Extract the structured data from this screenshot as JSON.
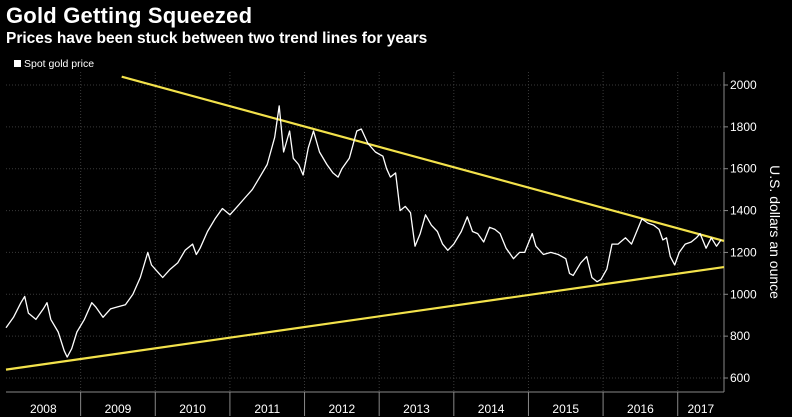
{
  "title": "Gold Getting Squeezed",
  "subtitle": "Prices have been stuck between two trend lines for years",
  "colors": {
    "background": "#000000",
    "price_line": "#ffffff",
    "trend_line": "#f3e24b",
    "grid": "#3a3a3a"
  },
  "chart_data": {
    "type": "line",
    "ylabel": "U.S. dollars an ounce",
    "ylim": [
      600,
      2000
    ],
    "yticks": [
      600,
      800,
      1000,
      1200,
      1400,
      1600,
      1800,
      2000
    ],
    "xticks": [
      "2008",
      "2009",
      "2010",
      "2011",
      "2012",
      "2013",
      "2014",
      "2015",
      "2016",
      "2017"
    ],
    "xlim": [
      2008.0,
      2017.62
    ],
    "legend": {
      "placement": "top-left",
      "entries": [
        "Spot gold price"
      ]
    },
    "grid": true,
    "series": [
      {
        "name": "Spot gold price",
        "points": [
          [
            2008.0,
            840
          ],
          [
            2008.1,
            890
          ],
          [
            2008.2,
            960
          ],
          [
            2008.25,
            990
          ],
          [
            2008.3,
            910
          ],
          [
            2008.4,
            880
          ],
          [
            2008.5,
            930
          ],
          [
            2008.55,
            960
          ],
          [
            2008.6,
            880
          ],
          [
            2008.7,
            820
          ],
          [
            2008.78,
            730
          ],
          [
            2008.82,
            700
          ],
          [
            2008.88,
            740
          ],
          [
            2008.95,
            820
          ],
          [
            2009.05,
            880
          ],
          [
            2009.15,
            960
          ],
          [
            2009.2,
            940
          ],
          [
            2009.3,
            890
          ],
          [
            2009.4,
            930
          ],
          [
            2009.5,
            940
          ],
          [
            2009.6,
            950
          ],
          [
            2009.7,
            1000
          ],
          [
            2009.8,
            1080
          ],
          [
            2009.9,
            1200
          ],
          [
            2009.95,
            1140
          ],
          [
            2010.05,
            1100
          ],
          [
            2010.1,
            1080
          ],
          [
            2010.2,
            1120
          ],
          [
            2010.3,
            1150
          ],
          [
            2010.4,
            1210
          ],
          [
            2010.5,
            1240
          ],
          [
            2010.55,
            1190
          ],
          [
            2010.6,
            1220
          ],
          [
            2010.7,
            1300
          ],
          [
            2010.8,
            1360
          ],
          [
            2010.9,
            1410
          ],
          [
            2011.0,
            1380
          ],
          [
            2011.1,
            1420
          ],
          [
            2011.2,
            1460
          ],
          [
            2011.3,
            1500
          ],
          [
            2011.4,
            1560
          ],
          [
            2011.5,
            1620
          ],
          [
            2011.6,
            1750
          ],
          [
            2011.66,
            1900
          ],
          [
            2011.72,
            1680
          ],
          [
            2011.8,
            1780
          ],
          [
            2011.85,
            1650
          ],
          [
            2011.92,
            1620
          ],
          [
            2011.98,
            1570
          ],
          [
            2012.05,
            1700
          ],
          [
            2012.12,
            1780
          ],
          [
            2012.2,
            1680
          ],
          [
            2012.3,
            1620
          ],
          [
            2012.38,
            1580
          ],
          [
            2012.45,
            1560
          ],
          [
            2012.5,
            1600
          ],
          [
            2012.6,
            1650
          ],
          [
            2012.7,
            1780
          ],
          [
            2012.76,
            1790
          ],
          [
            2012.85,
            1720
          ],
          [
            2012.95,
            1680
          ],
          [
            2013.05,
            1660
          ],
          [
            2013.1,
            1600
          ],
          [
            2013.15,
            1560
          ],
          [
            2013.22,
            1580
          ],
          [
            2013.28,
            1400
          ],
          [
            2013.35,
            1420
          ],
          [
            2013.42,
            1390
          ],
          [
            2013.48,
            1230
          ],
          [
            2013.55,
            1290
          ],
          [
            2013.62,
            1380
          ],
          [
            2013.7,
            1330
          ],
          [
            2013.78,
            1300
          ],
          [
            2013.85,
            1240
          ],
          [
            2013.92,
            1210
          ],
          [
            2014.0,
            1240
          ],
          [
            2014.1,
            1300
          ],
          [
            2014.18,
            1370
          ],
          [
            2014.25,
            1300
          ],
          [
            2014.32,
            1290
          ],
          [
            2014.4,
            1250
          ],
          [
            2014.48,
            1320
          ],
          [
            2014.55,
            1310
          ],
          [
            2014.62,
            1290
          ],
          [
            2014.7,
            1220
          ],
          [
            2014.8,
            1170
          ],
          [
            2014.88,
            1200
          ],
          [
            2014.95,
            1200
          ],
          [
            2015.05,
            1290
          ],
          [
            2015.1,
            1230
          ],
          [
            2015.2,
            1190
          ],
          [
            2015.3,
            1200
          ],
          [
            2015.4,
            1190
          ],
          [
            2015.5,
            1170
          ],
          [
            2015.55,
            1100
          ],
          [
            2015.6,
            1090
          ],
          [
            2015.7,
            1150
          ],
          [
            2015.78,
            1180
          ],
          [
            2015.85,
            1080
          ],
          [
            2015.92,
            1060
          ],
          [
            2015.97,
            1070
          ],
          [
            2016.05,
            1120
          ],
          [
            2016.12,
            1240
          ],
          [
            2016.2,
            1240
          ],
          [
            2016.3,
            1270
          ],
          [
            2016.38,
            1240
          ],
          [
            2016.45,
            1300
          ],
          [
            2016.52,
            1360
          ],
          [
            2016.6,
            1340
          ],
          [
            2016.68,
            1330
          ],
          [
            2016.75,
            1310
          ],
          [
            2016.8,
            1260
          ],
          [
            2016.85,
            1270
          ],
          [
            2016.9,
            1180
          ],
          [
            2016.96,
            1140
          ],
          [
            2017.02,
            1200
          ],
          [
            2017.1,
            1240
          ],
          [
            2017.18,
            1250
          ],
          [
            2017.25,
            1270
          ],
          [
            2017.3,
            1290
          ],
          [
            2017.38,
            1220
          ],
          [
            2017.45,
            1270
          ],
          [
            2017.52,
            1230
          ],
          [
            2017.58,
            1260
          ]
        ]
      }
    ],
    "trend_lines": [
      {
        "from": [
          2009.55,
          2040
        ],
        "to": [
          2017.62,
          1255
        ]
      },
      {
        "from": [
          2008.0,
          640
        ],
        "to": [
          2017.62,
          1130
        ]
      }
    ]
  }
}
